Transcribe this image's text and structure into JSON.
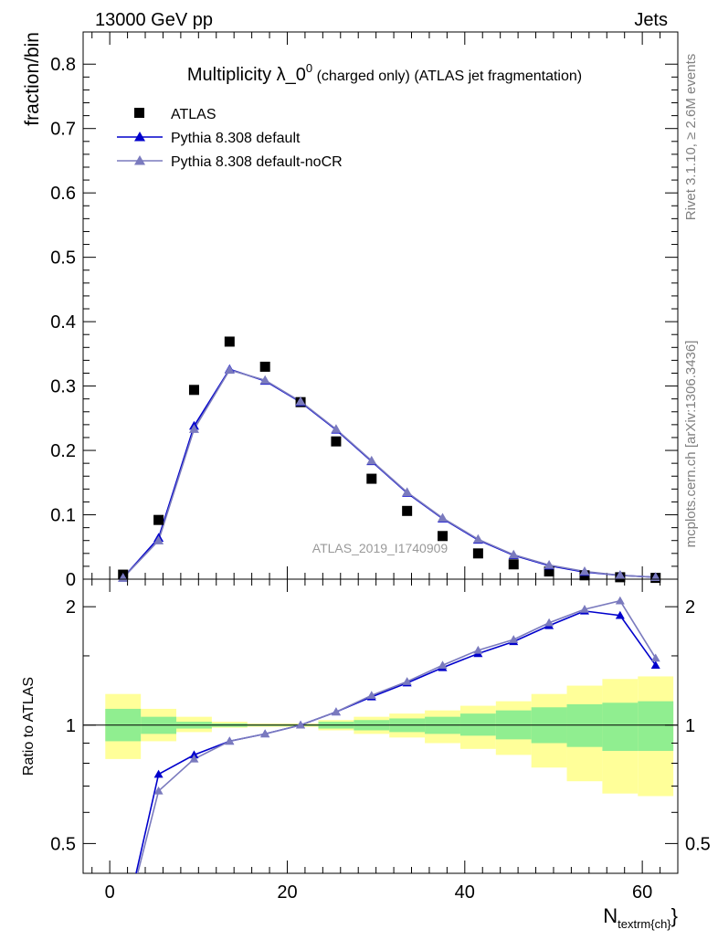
{
  "header": {
    "energy_label": "13000 GeV pp",
    "process_label": "Jets",
    "rivet_label": "Rivet 3.1.10, ≥ 2.6M events",
    "mcplots_label": "mcplots.cern.ch [arXiv:1306.3436]",
    "analysis_label": "ATLAS_2019_I1740909"
  },
  "chart_data": [
    {
      "type": "scatter",
      "panel": "main",
      "title_main": "Multiplicity λ_0",
      "title_sup": "0",
      "title_small": " (charged only)",
      "title_tail": " (ATLAS jet fragmentation)",
      "ylabel": "fraction/bin",
      "ylim": [
        0,
        0.85
      ],
      "yticks": [
        0,
        0.1,
        0.2,
        0.3,
        0.4,
        0.5,
        0.6,
        0.7,
        0.8
      ],
      "ytick_labels": [
        "0",
        "0.1",
        "0.2",
        "0.3",
        "0.4",
        "0.5",
        "0.6",
        "0.7",
        "0.8"
      ],
      "xlim": [
        -3,
        64
      ],
      "legend_position": "top-left",
      "x": [
        1.5,
        5.5,
        9.5,
        13.5,
        17.5,
        21.5,
        25.5,
        29.5,
        33.5,
        37.5,
        41.5,
        45.5,
        49.5,
        53.5,
        57.5,
        61.5
      ],
      "series": [
        {
          "name": "ATLAS",
          "color": "#000000",
          "marker": "square",
          "values": [
            0.007,
            0.092,
            0.294,
            0.369,
            0.33,
            0.275,
            0.214,
            0.156,
            0.106,
            0.067,
            0.04,
            0.023,
            0.012,
            0.006,
            0.003,
            0.002
          ]
        },
        {
          "name": "Pythia 8.308 default",
          "color": "#0000cc",
          "marker": "triangle",
          "values": [
            0.002,
            0.064,
            0.238,
            0.326,
            0.308,
            0.275,
            0.232,
            0.183,
            0.134,
            0.094,
            0.061,
            0.037,
            0.021,
            0.011,
            0.006,
            0.003
          ]
        },
        {
          "name": "Pythia 8.308 default-noCR",
          "color": "#7a7abe",
          "marker": "triangle",
          "values": [
            0.002,
            0.06,
            0.233,
            0.325,
            0.309,
            0.276,
            0.233,
            0.184,
            0.135,
            0.095,
            0.062,
            0.038,
            0.022,
            0.012,
            0.006,
            0.003
          ]
        }
      ]
    },
    {
      "type": "line",
      "panel": "ratio",
      "ylabel": "Ratio to ATLAS",
      "xlabel_main": "N",
      "xlabel_sub": "textrm{ch}",
      "xlabel_tail": "}",
      "yscale": "log",
      "ylim": [
        0.42,
        2.35
      ],
      "yticks": [
        0.5,
        1,
        2
      ],
      "ytick_labels": [
        "0.5",
        "1",
        "2"
      ],
      "xlim": [
        -3,
        64
      ],
      "xticks": [
        0,
        20,
        40,
        60
      ],
      "xtick_labels": [
        "0",
        "20",
        "40",
        "60"
      ],
      "x": [
        1.5,
        5.5,
        9.5,
        13.5,
        17.5,
        21.5,
        25.5,
        29.5,
        33.5,
        37.5,
        41.5,
        45.5,
        49.5,
        53.5,
        57.5,
        61.5
      ],
      "bin_edges": [
        -0.5,
        3.5,
        7.5,
        11.5,
        15.5,
        19.5,
        23.5,
        27.5,
        31.5,
        35.5,
        39.5,
        43.5,
        47.5,
        51.5,
        55.5,
        59.5,
        63.5
      ],
      "band_inner": {
        "color": "#90ee90",
        "lo": [
          0.91,
          0.95,
          0.98,
          0.99,
          0.995,
          0.995,
          0.98,
          0.97,
          0.96,
          0.95,
          0.94,
          0.92,
          0.9,
          0.88,
          0.86,
          0.86
        ],
        "hi": [
          1.1,
          1.05,
          1.02,
          1.01,
          1.005,
          1.005,
          1.02,
          1.03,
          1.04,
          1.05,
          1.07,
          1.09,
          1.11,
          1.13,
          1.14,
          1.15
        ]
      },
      "band_outer": {
        "color": "#ffff99",
        "lo": [
          0.82,
          0.91,
          0.96,
          0.985,
          0.99,
          0.99,
          0.97,
          0.95,
          0.93,
          0.9,
          0.87,
          0.84,
          0.78,
          0.72,
          0.67,
          0.66
        ],
        "hi": [
          1.2,
          1.1,
          1.05,
          1.02,
          1.01,
          1.01,
          1.03,
          1.05,
          1.07,
          1.09,
          1.12,
          1.15,
          1.2,
          1.26,
          1.31,
          1.33
        ]
      },
      "series": [
        {
          "name": "Pythia 8.308 default",
          "color": "#0000cc",
          "values": [
            0.3,
            0.75,
            0.84,
            0.91,
            0.95,
            1.0,
            1.08,
            1.18,
            1.28,
            1.4,
            1.52,
            1.63,
            1.79,
            1.95,
            1.9,
            1.42
          ]
        },
        {
          "name": "Pythia 8.308 default-noCR",
          "color": "#7a7abe",
          "values": [
            0.3,
            0.68,
            0.82,
            0.91,
            0.95,
            1.0,
            1.08,
            1.19,
            1.29,
            1.42,
            1.55,
            1.65,
            1.82,
            1.97,
            2.07,
            1.48
          ]
        }
      ]
    }
  ]
}
